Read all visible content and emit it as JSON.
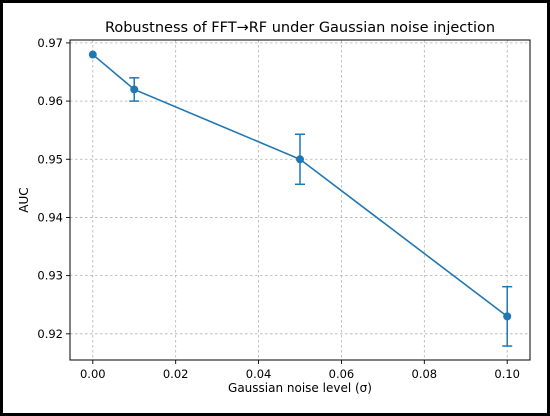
{
  "chart_data": {
    "type": "line",
    "title": "Robustness of FFT→RF under Gaussian noise injection",
    "xlabel": "Gaussian noise level (σ)",
    "ylabel": "AUC",
    "xlim": [
      -0.0055,
      0.1055
    ],
    "ylim": [
      0.9155,
      0.9705
    ],
    "xticks": [
      0.0,
      0.02,
      0.04,
      0.06,
      0.08,
      0.1
    ],
    "xtick_labels": [
      "0.00",
      "0.02",
      "0.04",
      "0.06",
      "0.08",
      "0.10"
    ],
    "yticks": [
      0.92,
      0.93,
      0.94,
      0.95,
      0.96,
      0.97
    ],
    "ytick_labels": [
      "0.92",
      "0.93",
      "0.94",
      "0.95",
      "0.96",
      "0.97"
    ],
    "grid": true,
    "series": [
      {
        "x": [
          0.0,
          0.01,
          0.05,
          0.1
        ],
        "y": [
          0.968,
          0.962,
          0.95,
          0.923
        ],
        "yerr": [
          0.0,
          0.002,
          0.0043,
          0.0051
        ],
        "color": "#1f77b4"
      }
    ]
  }
}
